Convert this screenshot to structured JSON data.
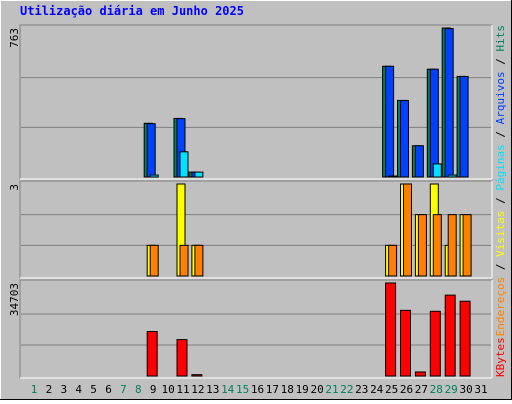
{
  "title": "Utilização diária em Junho 2025",
  "legend_separator": " / ",
  "chart_data": [
    {
      "type": "bar",
      "ylim": [
        0,
        763
      ],
      "yticks": [
        763
      ],
      "grid_divisions": 3,
      "series": [
        {
          "name": "Hits",
          "color": "#00805c",
          "values": [
            0,
            0,
            0,
            0,
            0,
            0,
            0,
            0,
            275,
            0,
            300,
            25,
            0,
            0,
            0,
            0,
            0,
            0,
            0,
            0,
            0,
            0,
            0,
            0,
            567,
            392,
            160,
            552,
            763,
            515,
            0
          ]
        },
        {
          "name": "Arquivos",
          "color": "#0040ff",
          "values": [
            0,
            0,
            0,
            0,
            0,
            0,
            0,
            0,
            273,
            0,
            299,
            25,
            0,
            0,
            0,
            0,
            0,
            0,
            0,
            0,
            0,
            0,
            0,
            0,
            567,
            392,
            160,
            552,
            760,
            515,
            0
          ]
        },
        {
          "name": "Páginas",
          "color": "#00e0ff",
          "values": [
            0,
            0,
            0,
            0,
            0,
            0,
            0,
            0,
            10,
            0,
            129,
            25,
            0,
            0,
            0,
            0,
            0,
            0,
            0,
            0,
            0,
            0,
            0,
            0,
            5,
            0,
            0,
            67,
            10,
            0,
            0
          ]
        }
      ]
    },
    {
      "type": "bar",
      "ylim": [
        0,
        3
      ],
      "yticks": [
        3
      ],
      "grid_divisions": 3,
      "series": [
        {
          "name": "Visitas",
          "color": "#ffff00",
          "values": [
            0,
            0,
            0,
            0,
            0,
            0,
            0,
            0,
            1,
            0,
            3,
            1,
            0,
            0,
            0,
            0,
            0,
            0,
            0,
            0,
            0,
            0,
            0,
            0,
            1,
            3,
            2,
            3,
            1,
            2,
            0
          ]
        },
        {
          "name": "Endereços",
          "color": "#ff8000",
          "values": [
            0,
            0,
            0,
            0,
            0,
            0,
            0,
            0,
            1,
            0,
            1,
            1,
            0,
            0,
            0,
            0,
            0,
            0,
            0,
            0,
            0,
            0,
            0,
            0,
            1,
            3,
            2,
            2,
            2,
            2,
            0
          ]
        }
      ]
    },
    {
      "type": "bar",
      "ylim": [
        0,
        34703
      ],
      "yticks": [
        34703
      ],
      "grid_divisions": 3,
      "categories": [
        "1",
        "2",
        "3",
        "4",
        "5",
        "6",
        "7",
        "8",
        "9",
        "10",
        "11",
        "12",
        "13",
        "14",
        "15",
        "16",
        "17",
        "18",
        "19",
        "20",
        "21",
        "22",
        "23",
        "24",
        "25",
        "26",
        "27",
        "28",
        "29",
        "30",
        "31"
      ],
      "category_colors": [
        "#00805c",
        "#000",
        "#000",
        "#000",
        "#000",
        "#000",
        "#00805c",
        "#00805c",
        "#000",
        "#000",
        "#000",
        "#000",
        "#000",
        "#00805c",
        "#00805c",
        "#000",
        "#000",
        "#000",
        "#000",
        "#000",
        "#00805c",
        "#00805c",
        "#000",
        "#000",
        "#000",
        "#000",
        "#000",
        "#00805c",
        "#00805c",
        "#000",
        "#000"
      ],
      "series": [
        {
          "name": "KBytes",
          "color": "#ff0000",
          "values": [
            0,
            0,
            0,
            0,
            0,
            0,
            0,
            0,
            16600,
            0,
            13580,
            500,
            0,
            0,
            0,
            0,
            0,
            0,
            0,
            0,
            0,
            0,
            0,
            0,
            34703,
            24500,
            1500,
            24140,
            30180,
            27900,
            0
          ]
        }
      ]
    }
  ]
}
